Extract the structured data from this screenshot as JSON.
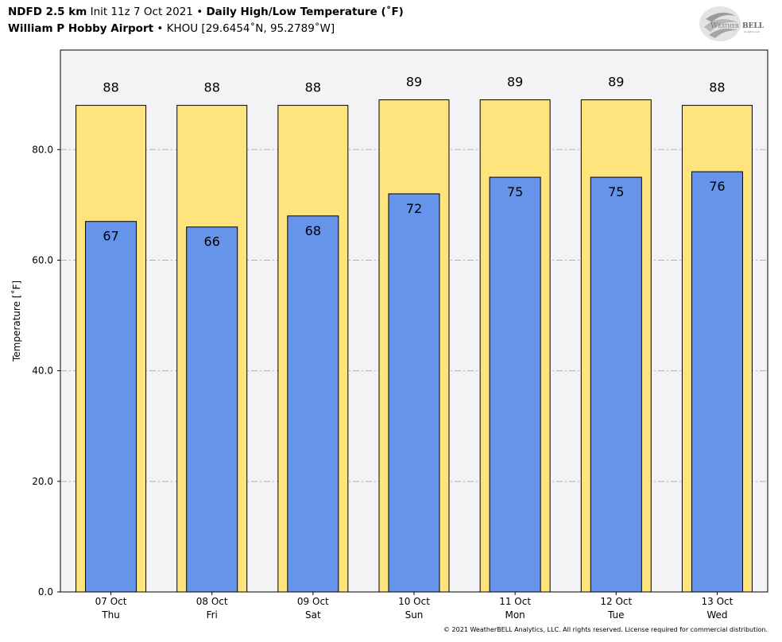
{
  "header": {
    "model": "NDFD 2.5 km",
    "init": "Init 11z 7 Oct 2021",
    "bullet": "•",
    "title": "Daily High/Low Temperature (˚F)",
    "station_name": "William P Hobby Airport",
    "station_info": "KHOU [29.6454˚N, 95.2789˚W]"
  },
  "logo": {
    "text_weather": "Weather",
    "text_bell": "BELL",
    "tagline": "Analytics LLC",
    "icon": "swirl-globe-icon"
  },
  "footer": {
    "copyright": "© 2021 WeatherBELL Analytics, LLC. All rights reserved. License required for commercial distribution."
  },
  "colors": {
    "high": "#ffe47d",
    "low": "#6694ea",
    "plot_bg": "#f3f2f5",
    "grid": "#b3b3b3"
  },
  "chart_data": {
    "type": "bar",
    "ylabel": "Temperature [˚F]",
    "ylim": [
      0,
      98
    ],
    "yticks": [
      0,
      20,
      40,
      60,
      80
    ],
    "ytick_labels": [
      "0.0",
      "20.0",
      "40.0",
      "60.0",
      "80.0"
    ],
    "grid": true,
    "categories": [
      {
        "date": "07 Oct",
        "day": "Thu"
      },
      {
        "date": "08 Oct",
        "day": "Fri"
      },
      {
        "date": "09 Oct",
        "day": "Sat"
      },
      {
        "date": "10 Oct",
        "day": "Sun"
      },
      {
        "date": "11 Oct",
        "day": "Mon"
      },
      {
        "date": "12 Oct",
        "day": "Tue"
      },
      {
        "date": "13 Oct",
        "day": "Wed"
      }
    ],
    "series": [
      {
        "values": [
          88,
          88,
          88,
          89,
          89,
          89,
          88
        ]
      },
      {
        "values": [
          67,
          66,
          68,
          72,
          75,
          75,
          76
        ]
      }
    ]
  }
}
